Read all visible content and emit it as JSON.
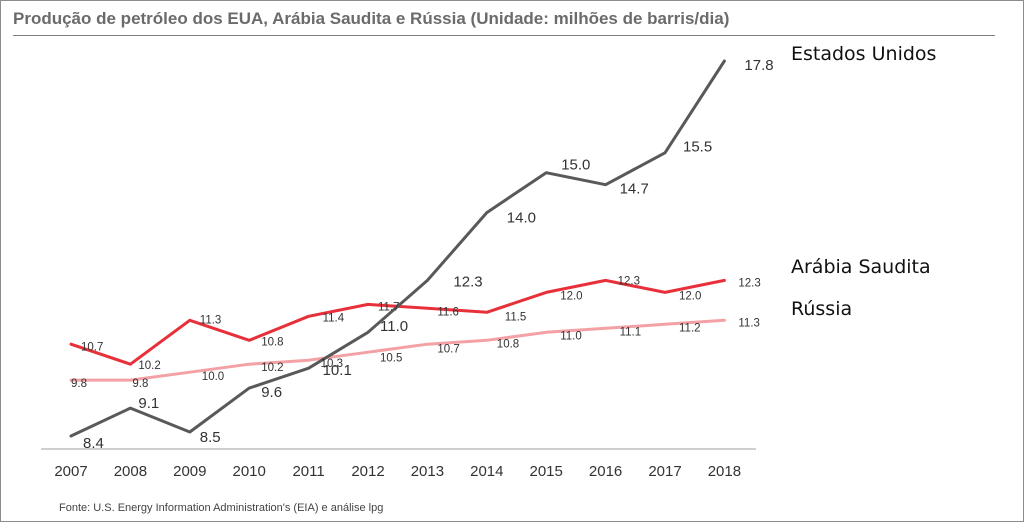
{
  "chart_data": {
    "type": "line",
    "title": "Produção de petróleo dos EUA, Arábia Saudita e Rússia (Unidade: milhões de barris/dia)",
    "source": "Fonte: U.S. Energy Information Administration's (EIA) e análise lpg",
    "categories": [
      "2007",
      "2008",
      "2009",
      "2010",
      "2011",
      "2012",
      "2013",
      "2014",
      "2015",
      "2016",
      "2017",
      "2018"
    ],
    "ylim": [
      8,
      18
    ],
    "grid": false,
    "legend": "inline-right",
    "series": [
      {
        "name": "Estados Unidos",
        "color": "#595959",
        "values": [
          8.4,
          9.1,
          8.5,
          9.6,
          10.1,
          11.0,
          12.3,
          14.0,
          15.0,
          14.7,
          15.5,
          17.8
        ],
        "labels": [
          "8.4",
          "9.1",
          "8.5",
          "9.6",
          "10.1",
          "11.0",
          "12.3",
          "14.0",
          "15.0",
          "14.7",
          "15.5",
          "17.8"
        ]
      },
      {
        "name": "Arábia Saudita",
        "color": "#e8303a",
        "values": [
          10.7,
          10.2,
          11.3,
          10.8,
          11.4,
          11.7,
          11.6,
          11.5,
          12.0,
          12.3,
          12.0,
          12.3
        ],
        "labels": [
          "10.7",
          "10.2",
          "11.3",
          "10.8",
          "11.4",
          "11.7",
          "11.6",
          "11.5",
          "12.0",
          "12.3",
          "12.0",
          "12.3"
        ]
      },
      {
        "name": "Rússia",
        "color": "#f4a1a6",
        "values": [
          9.8,
          9.8,
          10.0,
          10.2,
          10.3,
          10.5,
          10.7,
          10.8,
          11.0,
          11.1,
          11.2,
          11.3
        ],
        "labels": [
          "9.8",
          "9.8",
          "10.0",
          "10.2",
          "10.3",
          "10.5",
          "10.7",
          "10.8",
          "11.0",
          "11.1",
          "11.2",
          "11.3"
        ]
      }
    ]
  }
}
